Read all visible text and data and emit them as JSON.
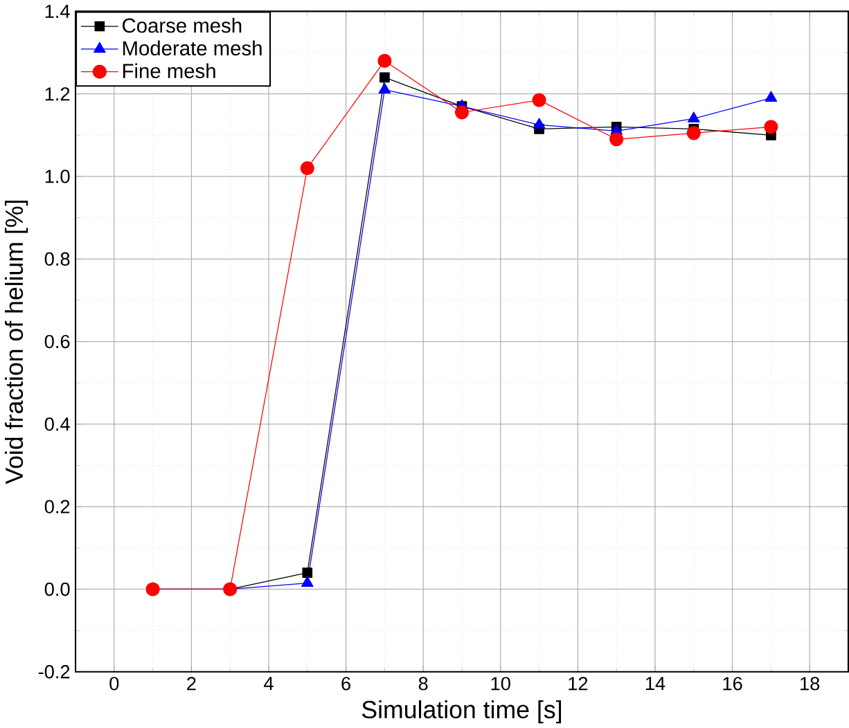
{
  "chart_data": {
    "type": "line",
    "xlabel": "Simulation time [s]",
    "ylabel": "Void fraction of helium [%]",
    "x": [
      1,
      3,
      5,
      7,
      9,
      11,
      13,
      15,
      17
    ],
    "series": [
      {
        "name": "Coarse mesh",
        "color": "#000000",
        "marker": "square",
        "values": [
          0,
          0,
          0.04,
          1.24,
          1.17,
          1.115,
          1.12,
          1.115,
          1.1
        ]
      },
      {
        "name": "Moderate mesh",
        "color": "#0000ff",
        "marker": "triangle",
        "values": [
          0,
          0,
          0.015,
          1.21,
          1.17,
          1.125,
          1.11,
          1.14,
          1.19
        ]
      },
      {
        "name": "Fine mesh",
        "color": "#ff0000",
        "marker": "circle",
        "values": [
          0,
          0,
          1.02,
          1.28,
          1.155,
          1.185,
          1.09,
          1.105,
          1.12
        ]
      }
    ],
    "xlim": [
      -1,
      19
    ],
    "ylim": [
      -0.2,
      1.4
    ],
    "xticks": [
      0,
      2,
      4,
      6,
      8,
      10,
      12,
      14,
      16,
      18
    ],
    "yticks": [
      -0.2,
      {
        "value": 0,
        "label": "0.0"
      },
      0.2,
      0.4,
      0.6,
      0.8,
      {
        "value": 1,
        "label": "1.0"
      },
      1.2,
      1.4
    ],
    "grid": true,
    "legend": "top left"
  }
}
